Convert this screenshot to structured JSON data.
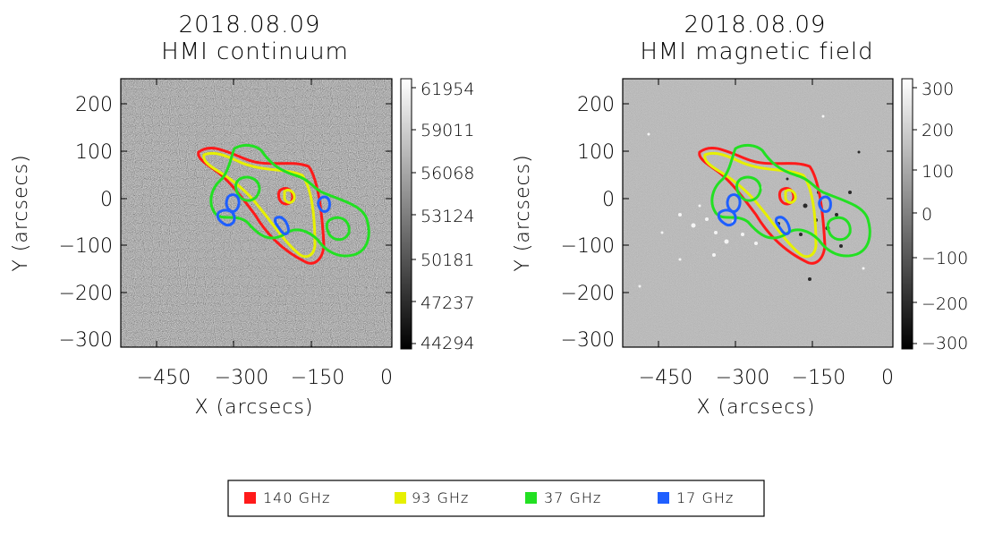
{
  "panels": [
    {
      "id": "continuum",
      "title_line1": "2018.08.09",
      "title_line2": "HMI continuum",
      "xlabel": "X (arcsecs)",
      "ylabel": "Y (arcsecs)",
      "x_ticks": [
        "−450",
        "−300",
        "−150",
        "0"
      ],
      "y_ticks": [
        "200",
        "100",
        "0",
        "−100",
        "−200",
        "−300"
      ],
      "colorbar_ticks": [
        "61954",
        "59011",
        "56068",
        "53124",
        "50181",
        "47237",
        "44294"
      ],
      "colorbar_range": [
        44294,
        61954
      ],
      "background": "noisy-grey"
    },
    {
      "id": "magnetic",
      "title_line1": "2018.08.09",
      "title_line2": "HMI magnetic field",
      "xlabel": "X (arcsecs)",
      "ylabel": "Y (arcsecs)",
      "x_ticks": [
        "−450",
        "−300",
        "−150",
        "0"
      ],
      "y_ticks": [
        "200",
        "100",
        "0",
        "−100",
        "−200",
        "−300"
      ],
      "colorbar_ticks": [
        "300",
        "200",
        "100",
        "0",
        "−100",
        "−200",
        "−300"
      ],
      "colorbar_range": [
        -300,
        300
      ],
      "background": "magnetogram-grey"
    }
  ],
  "legend": [
    {
      "label": "140 GHz",
      "color": "#ff1a1a"
    },
    {
      "label": "93 GHz",
      "color": "#e6f000"
    },
    {
      "label": "37 GHz",
      "color": "#22e022"
    },
    {
      "label": "17 GHz",
      "color": "#1f5fff"
    }
  ],
  "colors": {
    "red": "#ff1a1a",
    "yellow": "#e6f000",
    "green": "#22e022",
    "blue": "#1f5fff"
  }
}
